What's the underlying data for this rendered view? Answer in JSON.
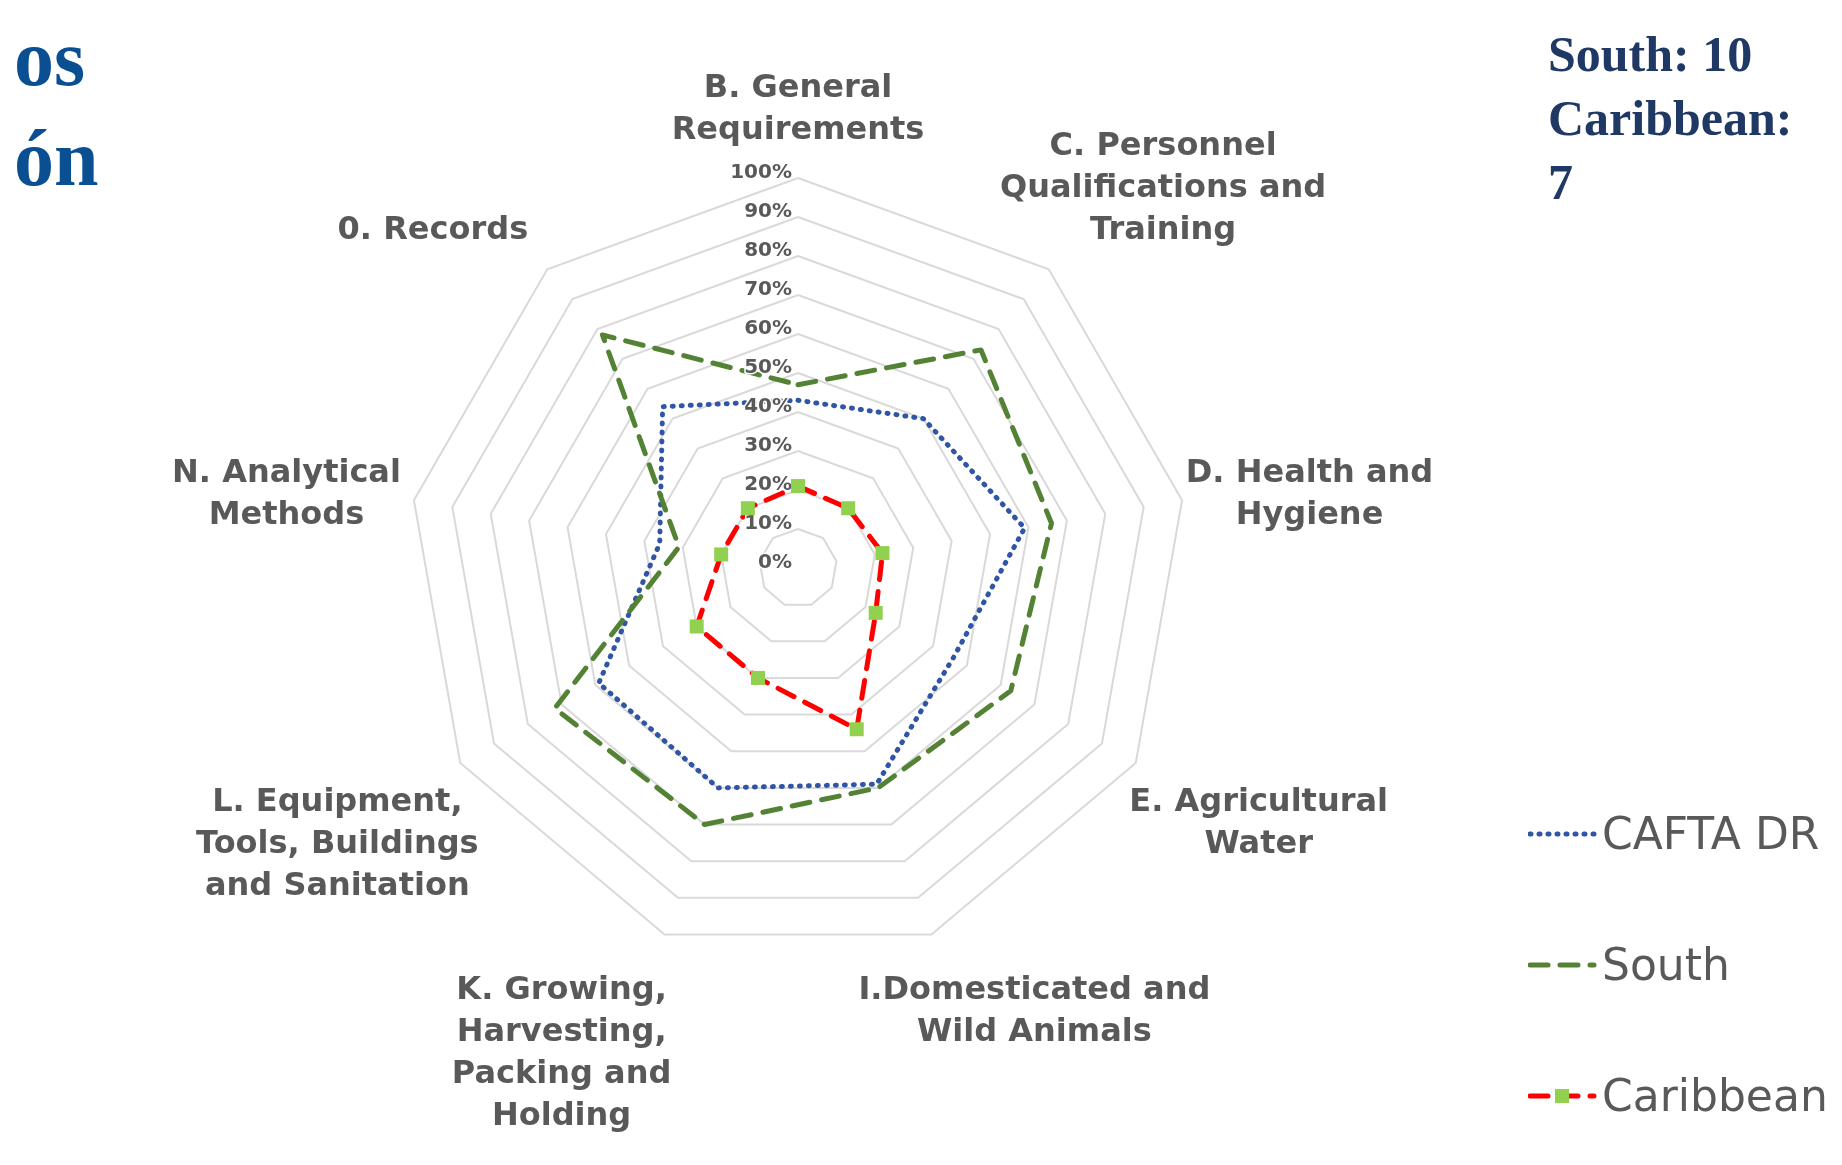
{
  "chart_data": {
    "type": "radar",
    "categories": [
      "B. General Requirements",
      "C. Personnel Qualifications and Training",
      "D. Health and Hygiene",
      "E. Agricultural Water",
      "I.Domesticated and Wild Animals",
      "K. Growing, Harvesting, Packing and Holding",
      "L. Equipment, Tools, Buildings and Sanitation",
      "N. Analytical Methods",
      "0. Records"
    ],
    "series": [
      {
        "name": "CAFTA DR",
        "color": "#2f55a4",
        "line_style": "dotted",
        "marker": "none",
        "values": [
          43,
          50,
          59,
          46,
          59,
          60,
          59,
          36,
          54
        ]
      },
      {
        "name": "South",
        "color": "#548235",
        "line_style": "dashed",
        "marker": "none",
        "values": [
          47,
          73,
          66,
          63,
          60,
          70,
          72,
          31,
          78
        ]
      },
      {
        "name": "Caribbean",
        "color": "#ff0000",
        "line_style": "dashed",
        "marker": "square",
        "colors": [
          "#92d050",
          "#92d050",
          "#92d050",
          "#92d050",
          "#92d050",
          "#92d050",
          "#92d050",
          "#92d050",
          "#92d050"
        ],
        "values": [
          21,
          20,
          22,
          23,
          44,
          30,
          30,
          20,
          20
        ]
      }
    ],
    "ylim": [
      0,
      100
    ],
    "yticks": [
      {
        "value": 0,
        "label": "0%"
      },
      {
        "value": 10,
        "label": "10%"
      },
      {
        "value": 20,
        "label": "20%"
      },
      {
        "value": 30,
        "label": "30%"
      },
      {
        "value": 40,
        "label": "40%"
      },
      {
        "value": 50,
        "label": "50%"
      },
      {
        "value": 60,
        "label": "60%"
      },
      {
        "value": 70,
        "label": "70%"
      },
      {
        "value": 80,
        "label": "80%"
      },
      {
        "value": 90,
        "label": "90%"
      },
      {
        "value": 100,
        "label": "100%"
      }
    ],
    "grid": true,
    "legend": "right",
    "annotations": [
      "os",
      "ón",
      "South: 10",
      "Caribbean: 7"
    ]
  }
}
